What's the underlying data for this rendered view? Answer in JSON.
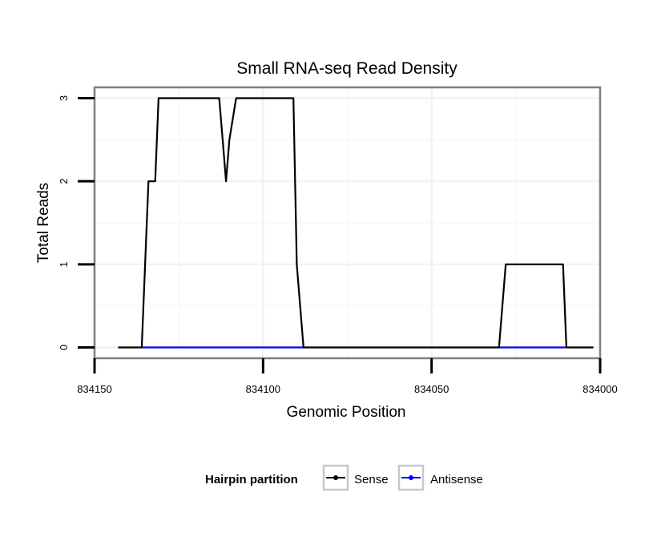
{
  "chart_data": {
    "type": "line",
    "title": "Small RNA-seq Read Density",
    "xlabel": "Genomic Position",
    "ylabel": "Total Reads",
    "xlim": [
      834150,
      834000
    ],
    "x_reversed": true,
    "ylim": [
      -0.13,
      3.13
    ],
    "x_ticks": [
      834150,
      834100,
      834050,
      834000
    ],
    "x_tick_labels": [
      "834150",
      "834100",
      "834050",
      "834000"
    ],
    "y_ticks": [
      0,
      1,
      2,
      3
    ],
    "y_tick_labels": [
      "0",
      "1",
      "2",
      "3"
    ],
    "grid": true,
    "legend": {
      "title": "Hairpin partition",
      "position": "bottom",
      "entries": [
        "Sense",
        "Antisense"
      ]
    },
    "series": [
      {
        "name": "Sense",
        "color": "#000000",
        "x": [
          834143,
          834136,
          834134,
          834133,
          834132,
          834131,
          834113,
          834112,
          834111,
          834110,
          834108,
          834091,
          834090,
          834088,
          834030,
          834028,
          834011,
          834010,
          834002
        ],
        "y": [
          0,
          0,
          2,
          2,
          2,
          3,
          3,
          2.5,
          2,
          2.5,
          3,
          3,
          1,
          0,
          0,
          1,
          1,
          0,
          0
        ]
      },
      {
        "name": "Antisense",
        "color": "#0000ff",
        "x": [
          834136,
          834088
        ],
        "y": [
          0,
          0
        ],
        "segments": [
          [
            834136,
            834088
          ],
          [
            834030,
            834010
          ]
        ]
      }
    ]
  }
}
